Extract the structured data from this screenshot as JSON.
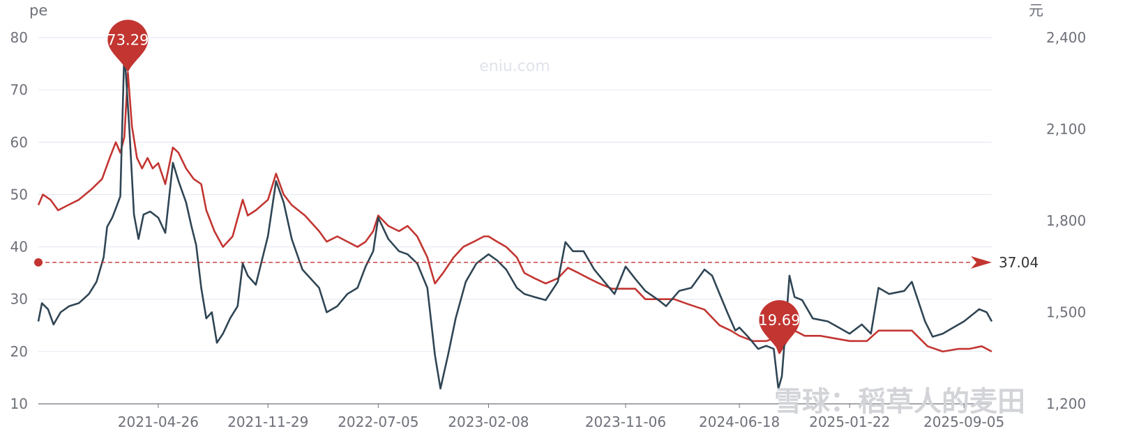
{
  "watermark": "eniu.com",
  "corner_watermark": "雪球：稻草人的麦田",
  "colors": {
    "pe": "#c23531",
    "price": "#2f4554",
    "grid": "#e0e6f1",
    "axis": "#6e7079"
  },
  "chart_data": {
    "type": "line",
    "y_left": {
      "unit": "pe",
      "min": 10,
      "max": 80,
      "ticks": [
        "10",
        "20",
        "30",
        "40",
        "50",
        "60",
        "70",
        "80"
      ]
    },
    "y_right": {
      "unit": "元",
      "min": 1200,
      "max": 2400,
      "ticks": [
        "1,200",
        "1,500",
        "1,800",
        "2,100",
        "2,400"
      ]
    },
    "x_start": "2020-09-01",
    "x_end": "2025-10-30",
    "x_ticks": [
      "2021-04-26",
      "2021-11-29",
      "2022-07-05",
      "2023-02-08",
      "2023-11-06",
      "2024-06-18",
      "2025-01-22",
      "2025-09-05"
    ],
    "series": [
      {
        "key": "pe",
        "axis": "left",
        "points": [
          [
            "2020-09-01",
            48
          ],
          [
            "2020-09-10",
            50
          ],
          [
            "2020-09-25",
            49
          ],
          [
            "2020-10-10",
            47
          ],
          [
            "2020-10-30",
            48
          ],
          [
            "2020-11-20",
            49
          ],
          [
            "2020-12-15",
            51
          ],
          [
            "2021-01-05",
            53
          ],
          [
            "2021-01-20",
            57
          ],
          [
            "2021-02-01",
            60
          ],
          [
            "2021-02-10",
            58
          ],
          [
            "2021-02-18",
            61
          ],
          [
            "2021-02-25",
            73.29
          ],
          [
            "2021-03-05",
            63
          ],
          [
            "2021-03-15",
            57
          ],
          [
            "2021-03-25",
            55
          ],
          [
            "2021-04-05",
            57
          ],
          [
            "2021-04-15",
            55
          ],
          [
            "2021-04-26",
            56
          ],
          [
            "2021-05-10",
            52
          ],
          [
            "2021-05-25",
            59
          ],
          [
            "2021-06-05",
            58
          ],
          [
            "2021-06-20",
            55
          ],
          [
            "2021-07-05",
            53
          ],
          [
            "2021-07-20",
            52
          ],
          [
            "2021-07-30",
            47
          ],
          [
            "2021-08-15",
            43
          ],
          [
            "2021-09-01",
            40
          ],
          [
            "2021-09-20",
            42
          ],
          [
            "2021-10-10",
            49
          ],
          [
            "2021-10-20",
            46
          ],
          [
            "2021-11-05",
            47
          ],
          [
            "2021-11-29",
            49
          ],
          [
            "2021-12-15",
            54
          ],
          [
            "2021-12-30",
            50
          ],
          [
            "2022-01-15",
            48
          ],
          [
            "2022-02-10",
            46
          ],
          [
            "2022-03-10",
            43
          ],
          [
            "2022-03-25",
            41
          ],
          [
            "2022-04-15",
            42
          ],
          [
            "2022-05-05",
            41
          ],
          [
            "2022-05-25",
            40
          ],
          [
            "2022-06-10",
            41
          ],
          [
            "2022-06-25",
            43
          ],
          [
            "2022-07-05",
            46
          ],
          [
            "2022-07-25",
            44
          ],
          [
            "2022-08-15",
            43
          ],
          [
            "2022-09-01",
            44
          ],
          [
            "2022-09-20",
            42
          ],
          [
            "2022-10-10",
            38
          ],
          [
            "2022-10-25",
            33
          ],
          [
            "2022-11-10",
            35
          ],
          [
            "2022-12-01",
            38
          ],
          [
            "2022-12-20",
            40
          ],
          [
            "2023-01-10",
            41
          ],
          [
            "2023-01-30",
            42
          ],
          [
            "2023-02-08",
            42
          ],
          [
            "2023-02-25",
            41
          ],
          [
            "2023-03-15",
            40
          ],
          [
            "2023-04-05",
            38
          ],
          [
            "2023-04-20",
            35
          ],
          [
            "2023-05-10",
            34
          ],
          [
            "2023-06-01",
            33
          ],
          [
            "2023-06-25",
            34
          ],
          [
            "2023-07-15",
            36
          ],
          [
            "2023-08-05",
            35
          ],
          [
            "2023-08-25",
            34
          ],
          [
            "2023-09-15",
            33
          ],
          [
            "2023-10-10",
            32
          ],
          [
            "2023-11-06",
            32
          ],
          [
            "2023-11-25",
            32
          ],
          [
            "2023-12-15",
            30
          ],
          [
            "2024-01-15",
            30
          ],
          [
            "2024-02-10",
            30
          ],
          [
            "2024-03-10",
            29
          ],
          [
            "2024-04-10",
            28
          ],
          [
            "2024-05-10",
            25
          ],
          [
            "2024-06-01",
            24
          ],
          [
            "2024-06-18",
            23
          ],
          [
            "2024-07-15",
            22
          ],
          [
            "2024-08-10",
            22
          ],
          [
            "2024-08-25",
            22.5
          ],
          [
            "2024-09-05",
            19.69
          ],
          [
            "2024-09-20",
            22
          ],
          [
            "2024-10-05",
            24
          ],
          [
            "2024-10-25",
            23
          ],
          [
            "2024-11-25",
            23
          ],
          [
            "2025-01-22",
            22
          ],
          [
            "2025-02-25",
            22
          ],
          [
            "2025-03-20",
            24
          ],
          [
            "2025-04-25",
            24
          ],
          [
            "2025-05-25",
            24
          ],
          [
            "2025-06-25",
            21
          ],
          [
            "2025-07-25",
            20
          ],
          [
            "2025-08-25",
            20.5
          ],
          [
            "2025-09-15",
            20.5
          ],
          [
            "2025-10-10",
            21
          ],
          [
            "2025-10-30",
            20
          ]
        ]
      },
      {
        "key": "price",
        "axis": "right",
        "points": [
          [
            "2020-09-01",
            1470
          ],
          [
            "2020-09-08",
            1530
          ],
          [
            "2020-09-20",
            1510
          ],
          [
            "2020-10-01",
            1460
          ],
          [
            "2020-10-15",
            1500
          ],
          [
            "2020-11-01",
            1520
          ],
          [
            "2020-11-20",
            1530
          ],
          [
            "2020-12-10",
            1560
          ],
          [
            "2020-12-25",
            1600
          ],
          [
            "2021-01-08",
            1680
          ],
          [
            "2021-01-15",
            1780
          ],
          [
            "2021-01-25",
            1810
          ],
          [
            "2021-02-01",
            1840
          ],
          [
            "2021-02-10",
            1880
          ],
          [
            "2021-02-18",
            2360
          ],
          [
            "2021-02-28",
            2100
          ],
          [
            "2021-03-09",
            1820
          ],
          [
            "2021-03-18",
            1740
          ],
          [
            "2021-03-28",
            1820
          ],
          [
            "2021-04-10",
            1830
          ],
          [
            "2021-04-26",
            1810
          ],
          [
            "2021-05-10",
            1760
          ],
          [
            "2021-05-25",
            1990
          ],
          [
            "2021-06-05",
            1930
          ],
          [
            "2021-06-20",
            1860
          ],
          [
            "2021-07-01",
            1780
          ],
          [
            "2021-07-10",
            1720
          ],
          [
            "2021-07-20",
            1580
          ],
          [
            "2021-07-30",
            1480
          ],
          [
            "2021-08-10",
            1500
          ],
          [
            "2021-08-20",
            1400
          ],
          [
            "2021-09-01",
            1430
          ],
          [
            "2021-09-15",
            1480
          ],
          [
            "2021-09-30",
            1520
          ],
          [
            "2021-10-10",
            1660
          ],
          [
            "2021-10-20",
            1620
          ],
          [
            "2021-11-05",
            1590
          ],
          [
            "2021-11-29",
            1750
          ],
          [
            "2021-12-15",
            1930
          ],
          [
            "2021-12-30",
            1860
          ],
          [
            "2022-01-15",
            1740
          ],
          [
            "2022-02-05",
            1640
          ],
          [
            "2022-03-10",
            1580
          ],
          [
            "2022-03-25",
            1500
          ],
          [
            "2022-04-15",
            1520
          ],
          [
            "2022-05-05",
            1560
          ],
          [
            "2022-05-25",
            1580
          ],
          [
            "2022-06-10",
            1650
          ],
          [
            "2022-06-25",
            1700
          ],
          [
            "2022-07-05",
            1810
          ],
          [
            "2022-07-25",
            1740
          ],
          [
            "2022-08-15",
            1700
          ],
          [
            "2022-09-01",
            1690
          ],
          [
            "2022-09-20",
            1660
          ],
          [
            "2022-10-10",
            1580
          ],
          [
            "2022-10-25",
            1360
          ],
          [
            "2022-11-05",
            1250
          ],
          [
            "2022-11-20",
            1360
          ],
          [
            "2022-12-05",
            1480
          ],
          [
            "2022-12-25",
            1600
          ],
          [
            "2023-01-15",
            1660
          ],
          [
            "2023-02-08",
            1690
          ],
          [
            "2023-02-25",
            1670
          ],
          [
            "2023-03-15",
            1640
          ],
          [
            "2023-04-05",
            1580
          ],
          [
            "2023-04-20",
            1560
          ],
          [
            "2023-05-10",
            1550
          ],
          [
            "2023-06-01",
            1540
          ],
          [
            "2023-06-25",
            1600
          ],
          [
            "2023-07-10",
            1730
          ],
          [
            "2023-07-25",
            1700
          ],
          [
            "2023-08-15",
            1700
          ],
          [
            "2023-09-05",
            1640
          ],
          [
            "2023-09-25",
            1600
          ],
          [
            "2023-10-15",
            1560
          ],
          [
            "2023-11-06",
            1650
          ],
          [
            "2023-11-25",
            1610
          ],
          [
            "2023-12-15",
            1570
          ],
          [
            "2024-01-10",
            1540
          ],
          [
            "2024-01-25",
            1520
          ],
          [
            "2024-02-20",
            1570
          ],
          [
            "2024-03-15",
            1580
          ],
          [
            "2024-04-10",
            1640
          ],
          [
            "2024-04-25",
            1620
          ],
          [
            "2024-05-10",
            1560
          ],
          [
            "2024-05-25",
            1500
          ],
          [
            "2024-06-10",
            1440
          ],
          [
            "2024-06-18",
            1450
          ],
          [
            "2024-07-05",
            1420
          ],
          [
            "2024-07-25",
            1380
          ],
          [
            "2024-08-10",
            1390
          ],
          [
            "2024-08-25",
            1380
          ],
          [
            "2024-09-03",
            1250
          ],
          [
            "2024-09-10",
            1290
          ],
          [
            "2024-09-18",
            1460
          ],
          [
            "2024-09-25",
            1620
          ],
          [
            "2024-10-05",
            1550
          ],
          [
            "2024-10-20",
            1540
          ],
          [
            "2024-11-10",
            1480
          ],
          [
            "2024-12-10",
            1470
          ],
          [
            "2025-01-22",
            1430
          ],
          [
            "2025-02-15",
            1460
          ],
          [
            "2025-03-05",
            1430
          ],
          [
            "2025-03-20",
            1580
          ],
          [
            "2025-04-10",
            1560
          ],
          [
            "2025-05-10",
            1570
          ],
          [
            "2025-05-25",
            1600
          ],
          [
            "2025-06-20",
            1470
          ],
          [
            "2025-07-05",
            1420
          ],
          [
            "2025-07-25",
            1430
          ],
          [
            "2025-08-15",
            1450
          ],
          [
            "2025-09-05",
            1470
          ],
          [
            "2025-09-20",
            1490
          ],
          [
            "2025-10-05",
            1510
          ],
          [
            "2025-10-20",
            1500
          ],
          [
            "2025-10-30",
            1470
          ]
        ]
      }
    ],
    "max_pin": {
      "date": "2021-02-25",
      "value": 73.29,
      "label": "73.29"
    },
    "min_pin": {
      "date": "2024-09-05",
      "value": 19.69,
      "label": "19.69"
    },
    "average_line": {
      "value": 37.04,
      "label": "37.04"
    }
  }
}
